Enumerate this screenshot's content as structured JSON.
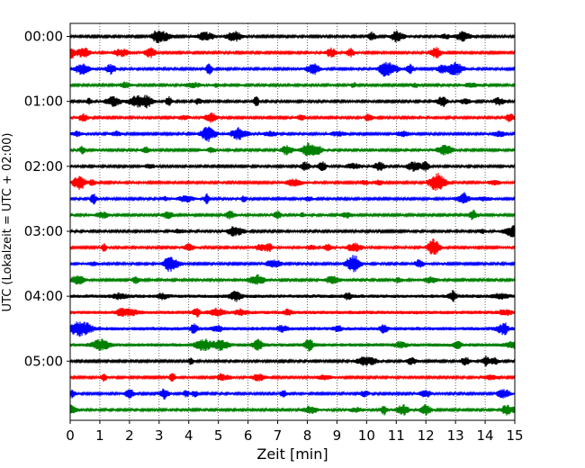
{
  "chart_data": {
    "type": "line",
    "title": "",
    "xlabel": "Zeit  [min]",
    "ylabel": "UTC (Lokalzeit = UTC + 02:00)",
    "xlim": [
      0,
      15
    ],
    "x_ticks": [
      "0",
      "1",
      "2",
      "3",
      "4",
      "5",
      "6",
      "7",
      "8",
      "9",
      "10",
      "11",
      "12",
      "13",
      "14",
      "15"
    ],
    "y_ticks": [
      "00:00",
      "01:00",
      "02:00",
      "03:00",
      "04:00",
      "05:00"
    ],
    "grid": "vertical dotted at each minute",
    "trace_colors": [
      "#000000",
      "#ff0000",
      "#0000ff",
      "#008000"
    ],
    "traces_per_hour": 4,
    "n_traces": 24,
    "series": [
      {
        "start": "00:00",
        "color": "#000000"
      },
      {
        "start": "00:15",
        "color": "#ff0000"
      },
      {
        "start": "00:30",
        "color": "#0000ff"
      },
      {
        "start": "00:45",
        "color": "#008000"
      },
      {
        "start": "01:00",
        "color": "#000000"
      },
      {
        "start": "01:15",
        "color": "#ff0000"
      },
      {
        "start": "01:30",
        "color": "#0000ff"
      },
      {
        "start": "01:45",
        "color": "#008000"
      },
      {
        "start": "02:00",
        "color": "#000000"
      },
      {
        "start": "02:15",
        "color": "#ff0000"
      },
      {
        "start": "02:30",
        "color": "#0000ff"
      },
      {
        "start": "02:45",
        "color": "#008000"
      },
      {
        "start": "03:00",
        "color": "#000000"
      },
      {
        "start": "03:15",
        "color": "#ff0000"
      },
      {
        "start": "03:30",
        "color": "#0000ff"
      },
      {
        "start": "03:45",
        "color": "#008000"
      },
      {
        "start": "04:00",
        "color": "#000000"
      },
      {
        "start": "04:15",
        "color": "#ff0000"
      },
      {
        "start": "04:30",
        "color": "#0000ff"
      },
      {
        "start": "04:45",
        "color": "#008000"
      },
      {
        "start": "05:00",
        "color": "#000000"
      },
      {
        "start": "05:15",
        "color": "#ff0000"
      },
      {
        "start": "05:30",
        "color": "#0000ff"
      },
      {
        "start": "05:45",
        "color": "#008000"
      }
    ]
  }
}
